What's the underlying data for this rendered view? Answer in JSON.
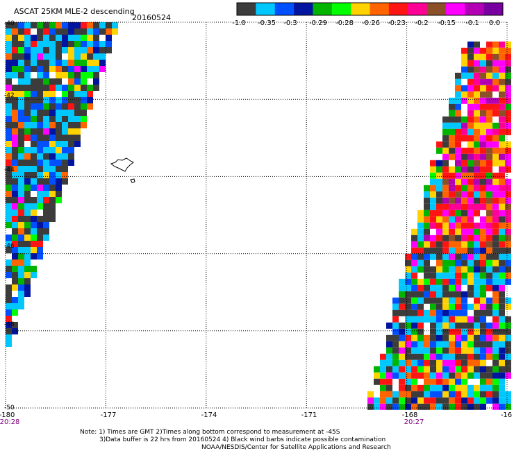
{
  "header": {
    "title": "ASCAT 25KM MLE-2 descending",
    "date": "20160524"
  },
  "colorbar": {
    "colors": [
      "#3c3c3c",
      "#00c8ff",
      "#0050ff",
      "#0014a0",
      "#00b400",
      "#00ff00",
      "#ffd200",
      "#ff6400",
      "#ff1414",
      "#ff0096",
      "#8c5028",
      "#ff00ff",
      "#b400b4",
      "#7800a0"
    ],
    "labels": [
      "-1.0",
      "-0.35",
      "-0.3",
      "-0.29",
      "-0.28",
      "-0.26",
      "-0.23",
      "-0.2",
      "-0.15",
      "-0.1",
      "0.0"
    ]
  },
  "chart_data": {
    "type": "heatmap",
    "title": "ASCAT 25KM MLE-2 descending",
    "xlim": [
      -180,
      -165
    ],
    "ylim": [
      -50,
      -40
    ],
    "x_tick_labels": [
      "-180",
      "-177",
      "-174",
      "-171",
      "-168",
      "-16"
    ],
    "y_tick_labels": [
      "-40",
      "-42",
      "-44",
      "-46",
      "-48",
      "-50"
    ],
    "time_labels": [
      {
        "lon": -180,
        "text": "20:28"
      },
      {
        "lon": -168,
        "text": "20:27"
      }
    ],
    "grid": true,
    "swaths": [
      {
        "name": "west",
        "lat_top": -40.0,
        "lat_bottom": -48.3,
        "lon_edge_top": -176.8,
        "lon_edge_bottom": -180.0
      },
      {
        "name": "east",
        "lat_top": -40.5,
        "lat_bottom": -50.0,
        "lon_edge_top": -166.2,
        "lon_edge_bottom": -169.2
      }
    ],
    "island": {
      "lon": -176.5,
      "lat": -44.0
    }
  },
  "footer": {
    "line1": "Note: 1) Times are GMT 2)Times along bottom correspond to measurement at -45S",
    "line2": "3)Data buffer is 22 hrs from 20160524 4) Black wind barbs indicate possible contamination",
    "line3": "NOAA/NESDIS/Center for Satellite Applications and Research"
  }
}
